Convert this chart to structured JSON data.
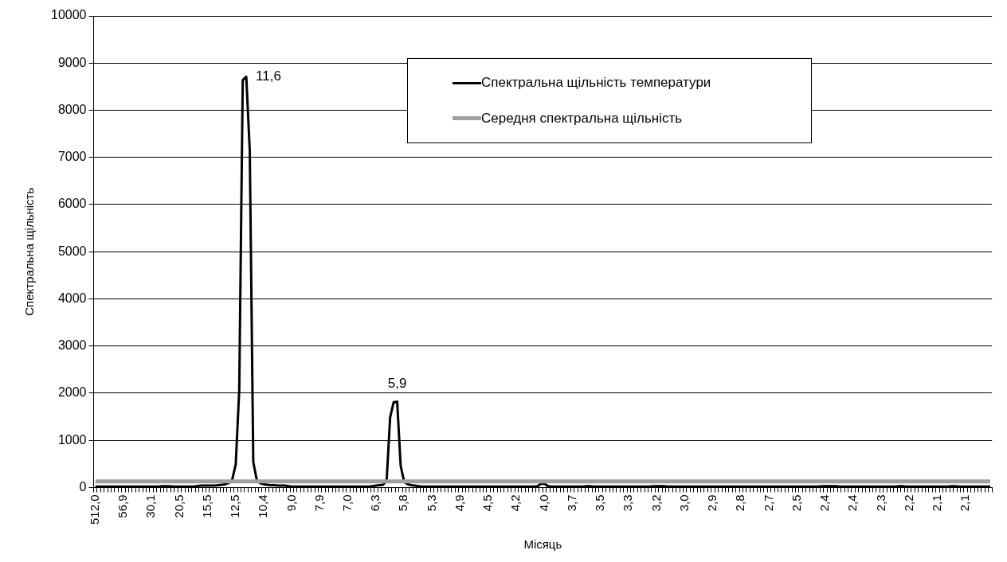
{
  "chart_data": {
    "type": "line",
    "xlabel": "Місяць",
    "ylabel": "Спектральна щільність",
    "categories": [
      "512,0",
      null,
      null,
      null,
      null,
      null,
      null,
      null,
      "56,9",
      null,
      null,
      null,
      null,
      null,
      null,
      null,
      "30,1",
      null,
      null,
      null,
      null,
      null,
      null,
      null,
      "20,5",
      null,
      null,
      null,
      null,
      null,
      null,
      null,
      "15,5",
      null,
      null,
      null,
      null,
      null,
      null,
      null,
      "12,5",
      null,
      null,
      null,
      null,
      null,
      null,
      null,
      "10,4",
      null,
      null,
      null,
      null,
      null,
      null,
      null,
      "9,0",
      null,
      null,
      null,
      null,
      null,
      null,
      null,
      "7,9",
      null,
      null,
      null,
      null,
      null,
      null,
      null,
      "7,0",
      null,
      null,
      null,
      null,
      null,
      null,
      null,
      "6,3",
      null,
      null,
      null,
      null,
      null,
      null,
      null,
      "5,8",
      null,
      null,
      null,
      null,
      null,
      null,
      null,
      "5,3",
      null,
      null,
      null,
      null,
      null,
      null,
      null,
      "4,9",
      null,
      null,
      null,
      null,
      null,
      null,
      null,
      "4,5",
      null,
      null,
      null,
      null,
      null,
      null,
      null,
      "4,2",
      null,
      null,
      null,
      null,
      null,
      null,
      null,
      "4,0",
      null,
      null,
      null,
      null,
      null,
      null,
      null,
      "3,7",
      null,
      null,
      null,
      null,
      null,
      null,
      null,
      "3,5",
      null,
      null,
      null,
      null,
      null,
      null,
      null,
      "3,3",
      null,
      null,
      null,
      null,
      null,
      null,
      null,
      "3,2",
      null,
      null,
      null,
      null,
      null,
      null,
      null,
      "3,0",
      null,
      null,
      null,
      null,
      null,
      null,
      null,
      "2,9",
      null,
      null,
      null,
      null,
      null,
      null,
      null,
      "2,8",
      null,
      null,
      null,
      null,
      null,
      null,
      null,
      "2,7",
      null,
      null,
      null,
      null,
      null,
      null,
      null,
      "2,5",
      null,
      null,
      null,
      null,
      null,
      null,
      null,
      "2,4",
      null,
      null,
      null,
      null,
      null,
      null,
      null,
      "2,4",
      null,
      null,
      null,
      null,
      null,
      null,
      null,
      "2,3",
      null,
      null,
      null,
      null,
      null,
      null,
      null,
      "2,2",
      null,
      null,
      null,
      null,
      null,
      null,
      null,
      "2,1",
      null,
      null,
      null,
      null,
      null,
      null,
      null,
      "2,1",
      null,
      null,
      null,
      null,
      null,
      null,
      null
    ],
    "series": [
      {
        "name": "Спектральна щільність температури",
        "color": "#000000",
        "values": [
          20,
          20,
          20,
          20,
          20,
          20,
          20,
          20,
          20,
          20,
          20,
          20,
          20,
          20,
          20,
          20,
          20,
          20,
          20,
          30,
          30,
          30,
          20,
          20,
          20,
          20,
          20,
          20,
          20,
          30,
          40,
          40,
          40,
          40,
          40,
          50,
          60,
          70,
          100,
          170,
          490,
          2070,
          8640,
          8710,
          7140,
          540,
          160,
          90,
          70,
          60,
          50,
          50,
          40,
          40,
          40,
          30,
          20,
          20,
          20,
          20,
          20,
          20,
          20,
          20,
          20,
          20,
          20,
          20,
          20,
          20,
          20,
          20,
          20,
          20,
          20,
          20,
          20,
          20,
          20,
          30,
          40,
          50,
          60,
          150,
          1490,
          1810,
          1820,
          460,
          120,
          70,
          50,
          40,
          30,
          20,
          20,
          20,
          20,
          20,
          20,
          20,
          20,
          20,
          20,
          20,
          20,
          20,
          20,
          20,
          20,
          20,
          20,
          20,
          20,
          20,
          20,
          20,
          20,
          20,
          20,
          20,
          20,
          20,
          20,
          20,
          20,
          20,
          30,
          80,
          80,
          30,
          20,
          20,
          20,
          20,
          20,
          20,
          20,
          20,
          20,
          20,
          30,
          30,
          20,
          20,
          20,
          20,
          20,
          20,
          20,
          20,
          20,
          20,
          20,
          20,
          20,
          20,
          20,
          20,
          20,
          30,
          30,
          30,
          30,
          20,
          20,
          20,
          20,
          20,
          20,
          20,
          20,
          20,
          20,
          20,
          20,
          20,
          20,
          20,
          20,
          20,
          20,
          20,
          20,
          20,
          20,
          20,
          20,
          20,
          20,
          20,
          20,
          20,
          20,
          20,
          20,
          20,
          20,
          20,
          20,
          20,
          20,
          20,
          20,
          20,
          20,
          20,
          20,
          30,
          30,
          30,
          30,
          30,
          20,
          20,
          20,
          20,
          20,
          20,
          20,
          20,
          20,
          20,
          20,
          20,
          20,
          20,
          20,
          20,
          20,
          30,
          30,
          20,
          20,
          20,
          20,
          20,
          20,
          20,
          20,
          20,
          20,
          20,
          20,
          20,
          30,
          30,
          20,
          20,
          20,
          20,
          20,
          20,
          20,
          20,
          20,
          20
        ]
      },
      {
        "name": "Середня спектральна щільність",
        "color": "#a0a0a0",
        "values": [
          130,
          130,
          130,
          130,
          130,
          130,
          130,
          130,
          130,
          130,
          130,
          130,
          130,
          130,
          130,
          130,
          130,
          130,
          130,
          130,
          130,
          130,
          130,
          130,
          130,
          130,
          130,
          130,
          130,
          130,
          130,
          130,
          130,
          130,
          130,
          130,
          130,
          130,
          130,
          130,
          130,
          130,
          130,
          130,
          130,
          130,
          130,
          130,
          130,
          130,
          130,
          130,
          130,
          130,
          130,
          130,
          130,
          130,
          130,
          130,
          130,
          130,
          130,
          130,
          130,
          130,
          130,
          130,
          130,
          130,
          130,
          130,
          130,
          130,
          130,
          130,
          130,
          130,
          130,
          130,
          130,
          130,
          130,
          130,
          130,
          130,
          130,
          130,
          130,
          130,
          130,
          130,
          130,
          130,
          130,
          130,
          130,
          130,
          130,
          130,
          130,
          130,
          130,
          130,
          130,
          130,
          130,
          130,
          130,
          130,
          130,
          130,
          130,
          130,
          130,
          130,
          130,
          130,
          130,
          130,
          130,
          130,
          130,
          130,
          130,
          130,
          130,
          130,
          130,
          130,
          130,
          130,
          130,
          130,
          130,
          130,
          130,
          130,
          130,
          130,
          130,
          130,
          130,
          130,
          130,
          130,
          130,
          130,
          130,
          130,
          130,
          130,
          130,
          130,
          130,
          130,
          130,
          130,
          130,
          130,
          130,
          130,
          130,
          130,
          130,
          130,
          130,
          130,
          130,
          130,
          130,
          130,
          130,
          130,
          130,
          130,
          130,
          130,
          130,
          130,
          130,
          130,
          130,
          130,
          130,
          130,
          130,
          130,
          130,
          130,
          130,
          130,
          130,
          130,
          130,
          130,
          130,
          130,
          130,
          130,
          130,
          130,
          130,
          130,
          130,
          130,
          130,
          130,
          130,
          130,
          130,
          130,
          130,
          130,
          130,
          130,
          130,
          130,
          130,
          130,
          130,
          130,
          130,
          130,
          130,
          130,
          130,
          130,
          130,
          130,
          130,
          130,
          130,
          130,
          130,
          130,
          130,
          130,
          130,
          130,
          130,
          130,
          130,
          130,
          130,
          130,
          130,
          130,
          130,
          130,
          130,
          130,
          130,
          130,
          130,
          130
        ]
      }
    ],
    "ylim": [
      0,
      10000
    ],
    "yticks": [
      0,
      1000,
      2000,
      3000,
      4000,
      5000,
      6000,
      7000,
      8000,
      9000,
      10000
    ],
    "grid": "y",
    "legend": "top right",
    "marker": "none",
    "line_style": "solid",
    "annotations": [
      "11,6",
      "5,9"
    ]
  }
}
